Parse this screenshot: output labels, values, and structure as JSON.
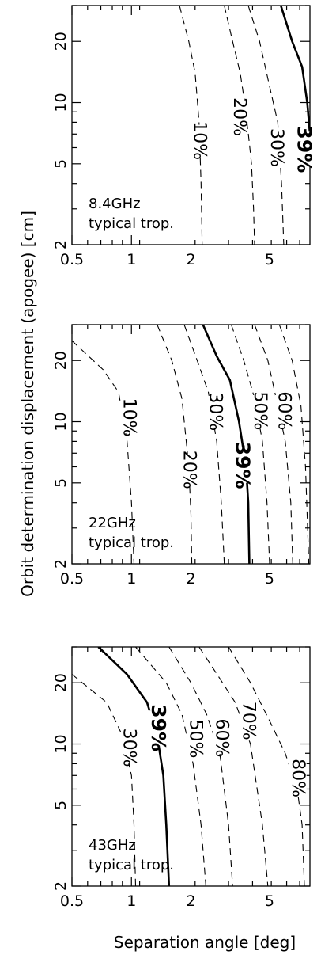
{
  "chart_data": {
    "type": "line",
    "xlabel": "Separation angle [deg]",
    "ylabel": "Orbit determination displacement (apogee) [cm]",
    "x_scale": "log",
    "y_scale": "log",
    "xlim": [
      0.5,
      8
    ],
    "ylim": [
      2,
      30
    ],
    "x_ticks": [
      0.5,
      1,
      2,
      5
    ],
    "x_tick_labels": [
      "0.5",
      "1",
      "2",
      "5"
    ],
    "y_ticks": [
      2,
      5,
      10,
      20
    ],
    "y_tick_labels": [
      "2",
      "5",
      "10",
      "20"
    ],
    "panels": [
      {
        "label_lines": [
          "8.4GHz",
          "typical trop."
        ],
        "contours": [
          {
            "label": "10%",
            "bold": false,
            "x": [
              1.75,
              1.95,
              2.1,
              2.2,
              2.25,
              2.28
            ],
            "y": [
              30,
              20,
              14,
              8,
              4,
              2
            ],
            "label_at": [
              2.2,
              6.5
            ]
          },
          {
            "label": "20%",
            "bold": false,
            "x": [
              2.95,
              3.25,
              3.55,
              3.8,
              4.05,
              4.15,
              4.2
            ],
            "y": [
              30,
              20,
              14,
              9,
              5,
              3,
              2
            ],
            "label_at": [
              3.5,
              8.5
            ]
          },
          {
            "label": "30%",
            "bold": false,
            "x": [
              3.9,
              4.45,
              5.0,
              5.5,
              5.75,
              5.9
            ],
            "y": [
              30,
              20,
              12,
              8,
              4,
              2
            ],
            "label_at": [
              5.4,
              6
            ]
          },
          {
            "label": "39%",
            "bold": true,
            "x": [
              5.7,
              6.5,
              7.3,
              7.75,
              8.0
            ],
            "y": [
              30,
              20,
              15,
              10,
              7
            ],
            "label_at": [
              7.5,
              5.9
            ]
          }
        ]
      },
      {
        "label_lines": [
          "22GHz",
          "typical trop."
        ],
        "contours": [
          {
            "label": "10%",
            "bold": false,
            "x": [
              0.5,
              0.72,
              0.86,
              0.95,
              1.0,
              1.03
            ],
            "y": [
              25,
              18,
              14,
              8,
              4,
              2
            ],
            "label_at": [
              0.97,
              10.5
            ]
          },
          {
            "label": "20%",
            "bold": false,
            "x": [
              1.35,
              1.6,
              1.8,
              1.95,
              2.0,
              2.02
            ],
            "y": [
              30,
              20,
              13,
              6,
              3.5,
              2
            ],
            "label_at": [
              1.95,
              5.8
            ]
          },
          {
            "label": "30%",
            "bold": false,
            "x": [
              1.85,
              2.15,
              2.45,
              2.7,
              2.85,
              2.95
            ],
            "y": [
              30,
              20,
              14,
              8,
              4,
              2
            ],
            "label_at": [
              2.65,
              11.2
            ]
          },
          {
            "label": "39%",
            "bold": true,
            "x": [
              2.3,
              2.7,
              3.15,
              3.5,
              3.8,
              3.9,
              3.95
            ],
            "y": [
              30,
              21,
              16,
              10,
              6,
              4,
              2
            ],
            "label_at": [
              3.65,
              6.1
            ]
          },
          {
            "label": "50%",
            "bold": false,
            "x": [
              3.2,
              3.7,
              4.2,
              4.6,
              4.85,
              5.0
            ],
            "y": [
              30,
              20,
              13,
              8,
              4,
              2
            ],
            "label_at": [
              4.45,
              11.3
            ]
          },
          {
            "label": "60%",
            "bold": false,
            "x": [
              4.2,
              4.9,
              5.5,
              6.0,
              6.4,
              6.55
            ],
            "y": [
              30,
              20,
              12,
              8,
              4,
              2
            ],
            "label_at": [
              5.9,
              11.3
            ]
          },
          {
            "label": "",
            "bold": false,
            "x": [
              5.6,
              6.5,
              7.2,
              7.6,
              7.9
            ],
            "y": [
              30,
              20,
              12,
              6,
              2
            ],
            "label_at": [
              7.0,
              20
            ]
          }
        ]
      },
      {
        "label_lines": [
          "43GHz",
          "typical trop."
        ],
        "contours": [
          {
            "label": "30%",
            "bold": false,
            "x": [
              0.5,
              0.75,
              0.9,
              1.0,
              1.03,
              1.05
            ],
            "y": [
              22,
              16,
              11,
              7,
              4,
              2
            ],
            "label_at": [
              0.97,
              9.6
            ]
          },
          {
            "label": "39%",
            "bold": true,
            "x": [
              0.68,
              0.95,
              1.2,
              1.35,
              1.45,
              1.5,
              1.55
            ],
            "y": [
              30,
              22,
              16,
              11,
              7,
              4,
              2
            ],
            "label_at": [
              1.37,
              12
            ]
          },
          {
            "label": "50%",
            "bold": false,
            "x": [
              1.05,
              1.5,
              1.8,
              2.05,
              2.25,
              2.38
            ],
            "y": [
              30,
              20,
              14,
              8,
              4,
              2
            ],
            "label_at": [
              2.1,
              10.6
            ]
          },
          {
            "label": "60%",
            "bold": false,
            "x": [
              1.55,
              2.0,
              2.4,
              2.8,
              3.1,
              3.25
            ],
            "y": [
              30,
              20,
              14,
              9,
              4,
              2
            ],
            "label_at": [
              2.85,
              10.7
            ]
          },
          {
            "label": "70%",
            "bold": false,
            "x": [
              2.2,
              2.8,
              3.35,
              4.0,
              4.6,
              4.9
            ],
            "y": [
              30,
              21,
              16,
              10,
              4,
              2
            ],
            "label_at": [
              3.9,
              13
            ]
          },
          {
            "label": "80%",
            "bold": false,
            "x": [
              3.1,
              4.0,
              5.0,
              6.0,
              6.9,
              7.3,
              7.5
            ],
            "y": [
              30,
              20,
              13,
              9,
              6,
              4,
              2
            ],
            "label_at": [
              6.95,
              6.8
            ]
          }
        ]
      }
    ]
  }
}
